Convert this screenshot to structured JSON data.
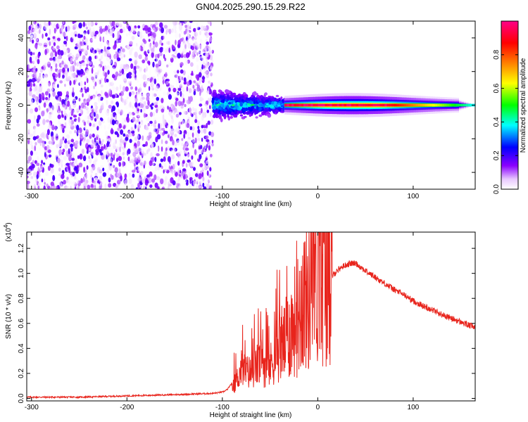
{
  "title": "GN04.2025.290.15.29.R22",
  "chart_data": [
    {
      "type": "heatmap",
      "xlabel": "Height of straight line (km)",
      "ylabel": "Frequency (Hz)",
      "xlim": [
        -305,
        165
      ],
      "ylim": [
        -50,
        50
      ],
      "xticks": [
        -300,
        -200,
        -100,
        0,
        100
      ],
      "yticks": [
        -40,
        -20,
        0,
        20,
        40
      ],
      "colorbar": {
        "label": "Normalized spectral amplitude",
        "range": [
          0,
          1
        ],
        "ticks": [
          0.0,
          0.2,
          0.4,
          0.6,
          0.8
        ],
        "colors": [
          "#ffffff",
          "#8a00ff",
          "#0000ff",
          "#00ffff",
          "#00ff00",
          "#ffff00",
          "#ff8000",
          "#ff0000",
          "#ff0080"
        ]
      },
      "regions": [
        {
          "x": [
            -305,
            -110
          ],
          "freq": [
            -50,
            50
          ],
          "amplitude": [
            0.0,
            0.2
          ]
        },
        {
          "x": [
            -110,
            -35
          ],
          "freq": [
            -12,
            12
          ],
          "amplitude": [
            0.1,
            0.45
          ]
        },
        {
          "x": [
            -35,
            165
          ],
          "freq": [
            -3,
            3
          ],
          "amplitude": [
            0.3,
            1.0
          ]
        }
      ]
    },
    {
      "type": "line",
      "xlabel": "Height of straight line (km)",
      "ylabel": "SNR (10 * v/v)",
      "yscale_label": "(x10",
      "yscale_exp": "4",
      "xlim": [
        -305,
        165
      ],
      "ylim": [
        -0.02,
        1.33
      ],
      "xticks": [
        -300,
        -200,
        -100,
        0,
        100
      ],
      "yticks": [
        0.0,
        0.2,
        0.4,
        0.6,
        0.8,
        1.0,
        1.2
      ],
      "series": [
        {
          "color": "#e8241c",
          "x": [
            -305,
            -250,
            -200,
            -150,
            -110,
            -100,
            -95,
            -90,
            -85,
            -80,
            -75,
            -70,
            -65,
            -60,
            -55,
            -50,
            -45,
            -40,
            -35,
            -30,
            -25,
            -20,
            -15,
            -10,
            -5,
            0,
            5,
            10,
            15,
            20,
            25,
            30,
            35,
            40,
            45,
            50,
            60,
            70,
            80,
            90,
            100,
            110,
            120,
            130,
            140,
            150,
            160,
            165
          ],
          "y": [
            0.01,
            0.01,
            0.02,
            0.03,
            0.04,
            0.05,
            0.07,
            0.12,
            0.22,
            0.35,
            0.3,
            0.28,
            0.32,
            0.38,
            0.33,
            0.3,
            0.42,
            0.5,
            0.48,
            0.55,
            0.62,
            0.68,
            0.8,
            0.75,
            0.85,
            0.9,
            0.88,
            0.95,
            0.98,
            1.02,
            1.05,
            1.07,
            1.08,
            1.08,
            1.05,
            1.02,
            0.97,
            0.92,
            0.87,
            0.83,
            0.78,
            0.74,
            0.71,
            0.67,
            0.64,
            0.61,
            0.58,
            0.57
          ]
        }
      ]
    }
  ]
}
